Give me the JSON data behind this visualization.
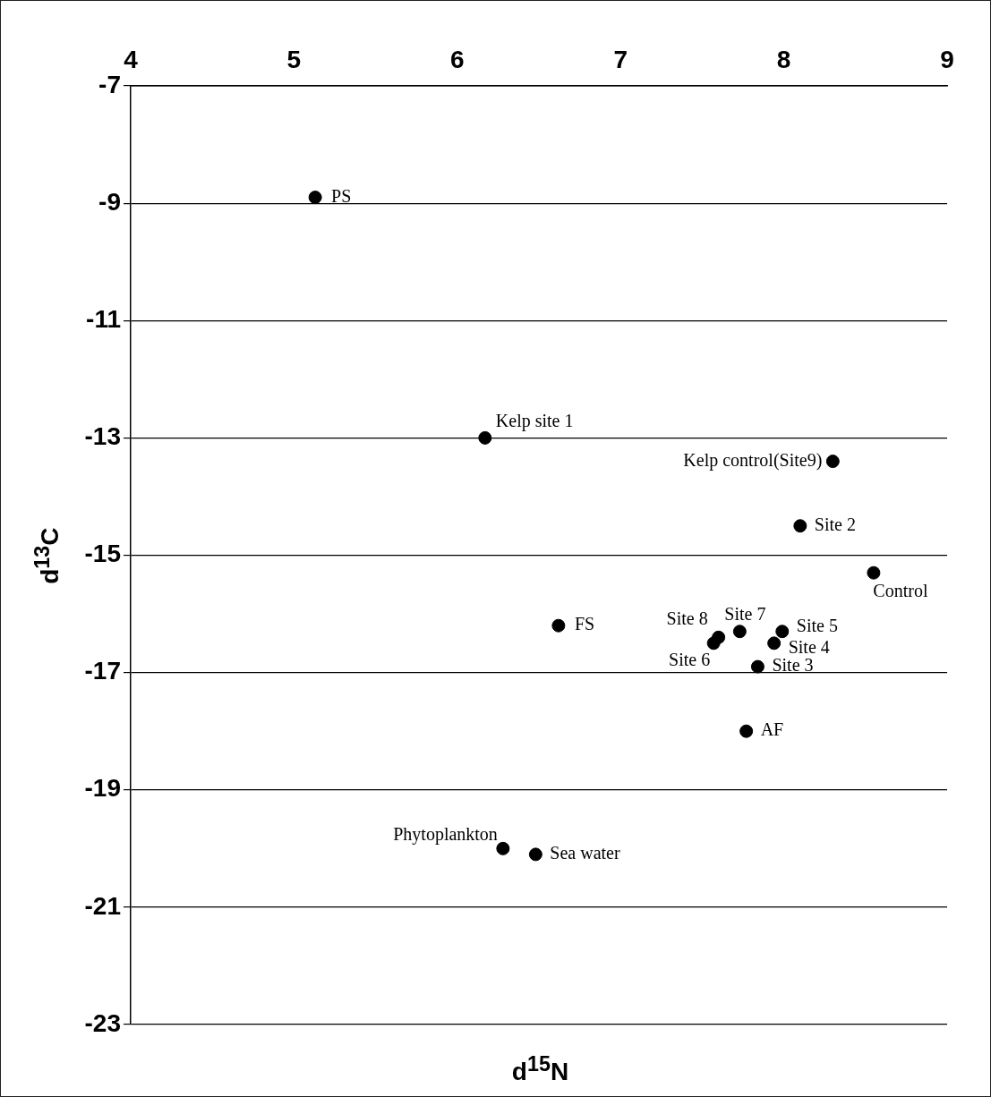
{
  "chart_data": {
    "type": "scatter",
    "xlabel": "d$^{15}$N",
    "ylabel": "d$^{13}$C",
    "x": [
      5.13,
      6.17,
      8.3,
      8.1,
      8.55,
      6.62,
      7.6,
      7.73,
      7.99,
      7.57,
      7.94,
      7.84,
      7.77,
      6.28,
      6.48
    ],
    "series": [
      {
        "color": "#000000",
        "values": [
          -8.9,
          -13.0,
          -13.4,
          -14.5,
          -15.3,
          -16.2,
          -16.4,
          -16.3,
          -16.3,
          -16.5,
          -16.5,
          -16.9,
          -18.0,
          -20.0,
          -20.1
        ]
      }
    ],
    "xlim": [
      4,
      9
    ],
    "xticks": [
      4,
      5,
      6,
      7,
      8,
      9
    ],
    "ylim": [
      -23,
      -7
    ],
    "yticks": [
      -23,
      -21,
      -19,
      -17,
      -15,
      -13,
      -11,
      -9,
      -7
    ],
    "grid": "y",
    "legend": false,
    "marker": "circle",
    "annotations": [
      {
        "text": "PS",
        "x": 5.13,
        "y": -8.9
      },
      {
        "text": "Kelp site 1",
        "x": 6.17,
        "y": -13.0
      },
      {
        "text": "Kelp control(Site9)",
        "x": 8.3,
        "y": -13.4
      },
      {
        "text": "Site 2",
        "x": 8.1,
        "y": -14.5
      },
      {
        "text": "Control",
        "x": 8.55,
        "y": -15.3
      },
      {
        "text": "FS",
        "x": 6.62,
        "y": -16.2
      },
      {
        "text": "Site 8",
        "x": 7.6,
        "y": -16.4
      },
      {
        "text": "Site 7",
        "x": 7.73,
        "y": -16.3
      },
      {
        "text": "Site 5",
        "x": 7.99,
        "y": -16.3
      },
      {
        "text": "Site 6",
        "x": 7.57,
        "y": -16.5
      },
      {
        "text": "Site 4",
        "x": 7.94,
        "y": -16.5
      },
      {
        "text": "Site 3",
        "x": 7.84,
        "y": -16.9
      },
      {
        "text": "AF",
        "x": 7.77,
        "y": -18.0
      },
      {
        "text": "Phytoplankton",
        "x": 6.28,
        "y": -20.0
      },
      {
        "text": "Sea water",
        "x": 6.48,
        "y": -20.1
      }
    ]
  }
}
